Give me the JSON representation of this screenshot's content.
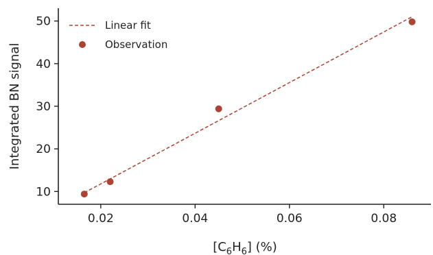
{
  "chart_data": {
    "type": "scatter",
    "title": "",
    "xlabel": {
      "prefix": "[C",
      "sub1": "6",
      "mid": "H",
      "sub2": "6",
      "suffix": "] (%)"
    },
    "ylabel": "Integrated BN signal",
    "xlim": [
      0.011,
      0.09
    ],
    "ylim": [
      7.0,
      53.0
    ],
    "xticks": [
      0.02,
      0.04,
      0.06,
      0.08
    ],
    "xtick_labels": [
      "0.02",
      "0.04",
      "0.06",
      "0.08"
    ],
    "yticks": [
      10,
      20,
      30,
      40,
      50
    ],
    "ytick_labels": [
      "10",
      "20",
      "30",
      "40",
      "50"
    ],
    "grid": false,
    "legend_position": "top-left",
    "series": [
      {
        "name": "Observation",
        "kind": "scatter",
        "color": "#a84535",
        "x": [
          0.0165,
          0.022,
          0.045,
          0.086
        ],
        "y": [
          9.4,
          12.3,
          29.4,
          49.8
        ]
      },
      {
        "name": "Linear fit",
        "kind": "line",
        "style": "dashed",
        "color": "#a84535",
        "x": [
          0.0165,
          0.086
        ],
        "y": [
          9.7,
          51.0
        ]
      }
    ]
  }
}
